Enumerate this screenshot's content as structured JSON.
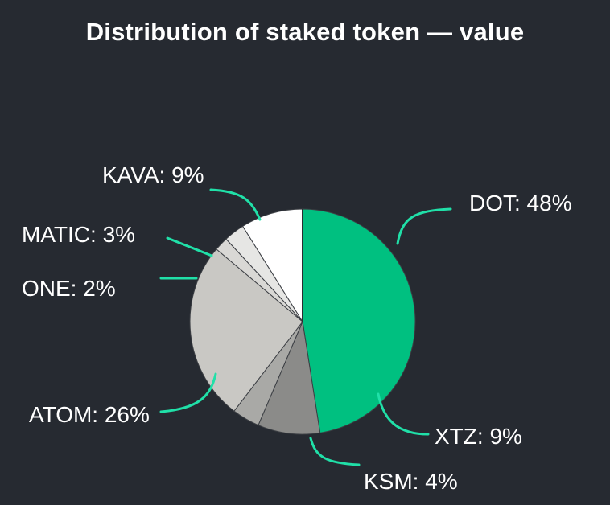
{
  "chart_data": {
    "type": "pie",
    "title": "Distribution of staked token — value",
    "slices": [
      {
        "label": "DOT",
        "value": 48,
        "color": "#00c080"
      },
      {
        "label": "XTZ",
        "value": 9,
        "color": "#8b8b89"
      },
      {
        "label": "KSM",
        "value": 4,
        "color": "#a9a9a6"
      },
      {
        "label": "ATOM",
        "value": 26,
        "color": "#c9c8c4"
      },
      {
        "label": "ONE",
        "value": 2,
        "color": "#d9d8d5"
      },
      {
        "label": "MATIC",
        "value": 3,
        "color": "#e6e6e4"
      },
      {
        "label": "KAVA",
        "value": 9,
        "color": "#ffffff"
      }
    ],
    "leader_color": "#20e0a8",
    "background": "#262a31"
  }
}
